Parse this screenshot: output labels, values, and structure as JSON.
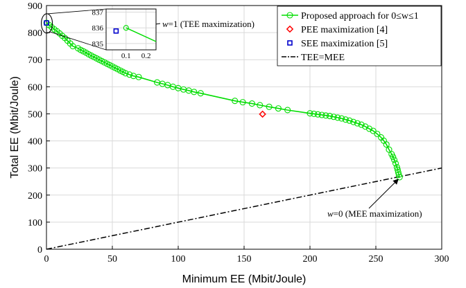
{
  "chart_data": {
    "type": "line",
    "title": "",
    "xlabel": "Minimum EE (Mbit/Joule)",
    "ylabel": "Total EE (Mbit/Joule)",
    "xlim": [
      0,
      300
    ],
    "ylim": [
      0,
      900
    ],
    "x_ticks": [
      "0",
      "50",
      "100",
      "150",
      "200",
      "250",
      "300"
    ],
    "y_ticks": [
      "0",
      "100",
      "200",
      "300",
      "400",
      "500",
      "600",
      "700",
      "800",
      "900"
    ],
    "grid": true,
    "legend_position": "top-right",
    "series": [
      {
        "name": "Proposed approach for 0≤w≤1",
        "color": "#00dd00",
        "marker": "circle",
        "x": [
          0.1,
          2,
          4,
          6,
          8,
          10,
          12,
          14,
          16,
          18,
          20,
          24,
          26,
          28,
          30,
          32,
          34,
          36,
          38,
          40,
          42,
          44,
          46,
          48,
          50,
          52,
          54,
          56,
          58,
          60,
          63,
          66,
          70,
          84,
          88,
          92,
          96,
          100,
          104,
          108,
          112,
          117,
          143,
          149,
          156,
          162,
          169,
          176,
          183,
          200,
          203,
          206,
          209,
          212,
          215,
          218,
          221,
          224,
          227,
          230,
          233,
          236,
          239,
          242,
          245,
          248,
          251,
          254,
          256,
          258,
          260,
          262,
          263,
          264,
          265,
          266,
          266.5,
          267,
          267.5,
          268
        ],
        "y": [
          836,
          828,
          820,
          812,
          805,
          797,
          788,
          780,
          770,
          760,
          750,
          742,
          736,
          731,
          726,
          720,
          715,
          710,
          705,
          700,
          695,
          690,
          685,
          680,
          675,
          670,
          665,
          660,
          655,
          650,
          645,
          640,
          636,
          616,
          611,
          606,
          600,
          595,
          590,
          586,
          581,
          576,
          548,
          543,
          538,
          532,
          526,
          520,
          514,
          502,
          500,
          498,
          496,
          494,
          492,
          489,
          486,
          483,
          479,
          475,
          470,
          465,
          460,
          453,
          445,
          437,
          426,
          413,
          401,
          387,
          368,
          351,
          341,
          330,
          317,
          303,
          294,
          284,
          275,
          266
        ]
      },
      {
        "name": "PEE maximization [4]",
        "color": "#ff0000",
        "marker": "diamond",
        "x": [
          164
        ],
        "y": [
          499
        ]
      },
      {
        "name": "SEE maximization [5]",
        "color": "#0000cc",
        "marker": "square",
        "x": [
          0.05
        ],
        "y": [
          835.8
        ]
      },
      {
        "name": "TEE=MEE",
        "color": "#000000",
        "line_style": "dash-dot",
        "x": [
          0,
          300
        ],
        "y": [
          0,
          300
        ]
      }
    ],
    "annotations": [
      {
        "text_prefix": "w",
        "text_suffix": "=1 (TEE maximization)",
        "x": 0.1,
        "y": 836
      },
      {
        "text_prefix": "w",
        "text_suffix": "=0 (MEE maximization)",
        "x": 268,
        "y": 266
      }
    ],
    "inset": {
      "xlim": [
        0,
        0.25
      ],
      "ylim": [
        834.6,
        837.2
      ],
      "x_ticks": [
        "0.1",
        "0.2"
      ],
      "y_ticks": [
        "837",
        "836",
        "835"
      ],
      "points": {
        "proposed": {
          "x": 0.1,
          "y": 836
        },
        "see": {
          "x": 0.05,
          "y": 835.8
        }
      }
    }
  }
}
